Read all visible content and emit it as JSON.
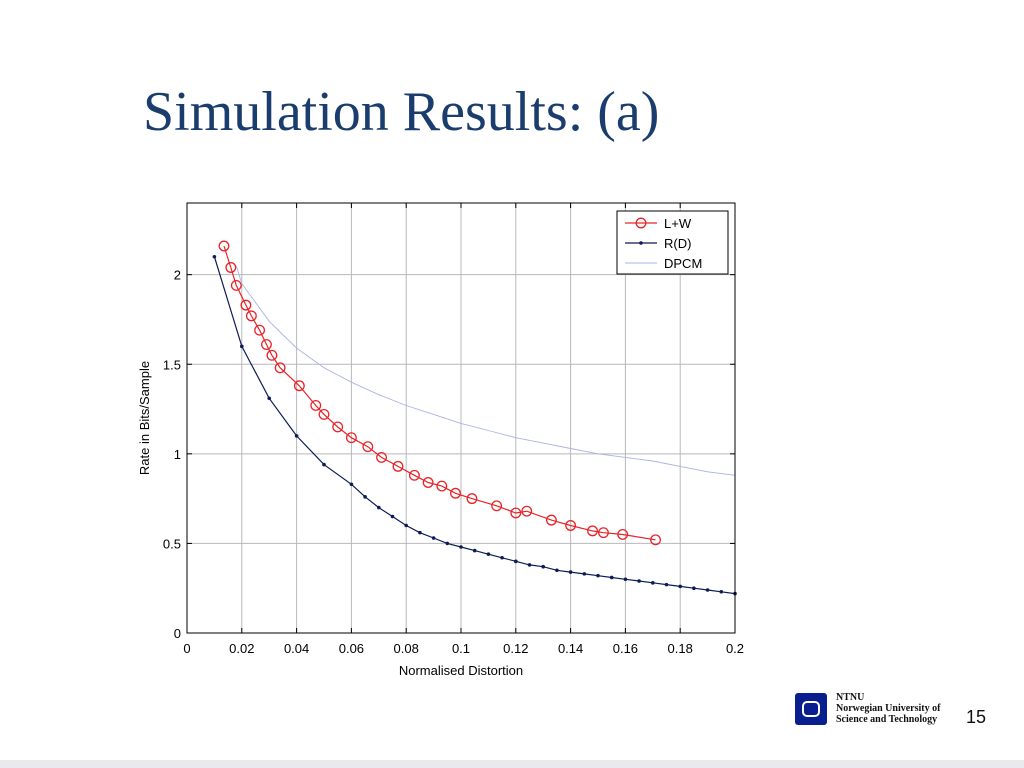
{
  "slide": {
    "title": "Simulation Results: (a)",
    "footer": {
      "org_short": "NTNU",
      "org_line1": "Norwegian University of",
      "org_line2": "Science and Technology",
      "logo_icon": "ntnu-logo-icon"
    },
    "page_number": "15"
  },
  "chart_data": {
    "type": "line",
    "title": "",
    "xlabel": "Normalised Distortion",
    "ylabel": "Rate in Bits/Sample",
    "xlim": [
      0,
      0.2
    ],
    "ylim": [
      0,
      2.4
    ],
    "xticks": [
      0,
      0.02,
      0.04,
      0.06,
      0.08,
      0.1,
      0.12,
      0.14,
      0.16,
      0.18,
      0.2
    ],
    "xtick_labels": [
      "0",
      "0.02",
      "0.04",
      "0.06",
      "0.08",
      "0.1",
      "0.12",
      "0.14",
      "0.16",
      "0.18",
      "0.2"
    ],
    "yticks": [
      0,
      0.5,
      1,
      1.5,
      2
    ],
    "ytick_labels": [
      "0",
      "0.5",
      "1",
      "1.5",
      "2"
    ],
    "grid": true,
    "legend_position": "top-right",
    "series": [
      {
        "name": "L+W",
        "color": "#e8242a",
        "marker": "circle",
        "x": [
          0.0135,
          0.016,
          0.018,
          0.0215,
          0.0235,
          0.0265,
          0.029,
          0.031,
          0.034,
          0.041,
          0.047,
          0.05,
          0.055,
          0.06,
          0.066,
          0.071,
          0.077,
          0.083,
          0.088,
          0.093,
          0.098,
          0.104,
          0.113,
          0.12,
          0.124,
          0.133,
          0.14,
          0.148,
          0.152,
          0.159,
          0.171
        ],
        "y": [
          2.16,
          2.04,
          1.94,
          1.83,
          1.77,
          1.69,
          1.61,
          1.55,
          1.48,
          1.38,
          1.27,
          1.22,
          1.15,
          1.09,
          1.04,
          0.98,
          0.93,
          0.88,
          0.84,
          0.82,
          0.78,
          0.75,
          0.71,
          0.67,
          0.68,
          0.63,
          0.6,
          0.57,
          0.56,
          0.55,
          0.52
        ]
      },
      {
        "name": "R(D)",
        "color": "#0d1b57",
        "marker": "dot",
        "x": [
          0.01,
          0.02,
          0.03,
          0.04,
          0.05,
          0.06,
          0.065,
          0.07,
          0.075,
          0.08,
          0.085,
          0.09,
          0.095,
          0.1,
          0.105,
          0.11,
          0.115,
          0.12,
          0.125,
          0.13,
          0.135,
          0.14,
          0.145,
          0.15,
          0.155,
          0.16,
          0.165,
          0.17,
          0.175,
          0.18,
          0.185,
          0.19,
          0.195,
          0.2
        ],
        "y": [
          2.1,
          1.6,
          1.31,
          1.1,
          0.94,
          0.83,
          0.76,
          0.7,
          0.65,
          0.6,
          0.56,
          0.53,
          0.5,
          0.48,
          0.46,
          0.44,
          0.42,
          0.4,
          0.38,
          0.37,
          0.35,
          0.34,
          0.33,
          0.32,
          0.31,
          0.3,
          0.29,
          0.28,
          0.27,
          0.26,
          0.25,
          0.24,
          0.23,
          0.22
        ]
      },
      {
        "name": "DPCM",
        "color": "#aab2e6",
        "marker": "none",
        "x": [
          0.018,
          0.02,
          0.03,
          0.04,
          0.05,
          0.06,
          0.07,
          0.08,
          0.09,
          0.1,
          0.11,
          0.12,
          0.13,
          0.14,
          0.15,
          0.16,
          0.17,
          0.18,
          0.19,
          0.2
        ],
        "y": [
          2.05,
          1.95,
          1.74,
          1.59,
          1.48,
          1.4,
          1.33,
          1.27,
          1.22,
          1.17,
          1.13,
          1.09,
          1.06,
          1.03,
          1.0,
          0.98,
          0.96,
          0.93,
          0.9,
          0.88
        ]
      }
    ]
  }
}
